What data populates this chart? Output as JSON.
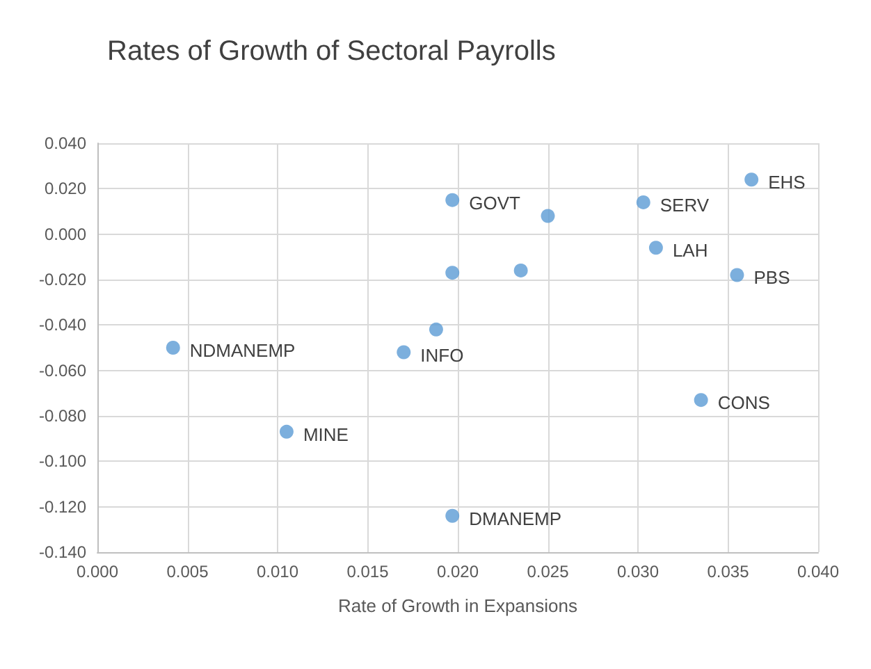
{
  "chart_data": {
    "type": "scatter",
    "title": "Rates of Growth of Sectoral Payrolls",
    "xlabel": "Rate of Growth in Expansions",
    "x": [
      0.0042,
      0.0105,
      0.017,
      0.0188,
      0.0197,
      0.0197,
      0.0197,
      0.0235,
      0.025,
      0.0303,
      0.031,
      0.0335,
      0.0355,
      0.0363
    ],
    "values": [
      -0.05,
      -0.087,
      -0.052,
      -0.042,
      -0.124,
      0.015,
      -0.017,
      -0.016,
      0.008,
      0.014,
      -0.006,
      -0.073,
      -0.018,
      0.024
    ],
    "color": "#5b9bd5",
    "marker": "circle",
    "grid": true,
    "xlim": [
      0,
      0.04
    ],
    "xticks": [
      {
        "value": 0,
        "label": "0.000"
      },
      {
        "value": 0.005,
        "label": "0.005"
      },
      {
        "value": 0.01,
        "label": "0.010"
      },
      {
        "value": 0.015,
        "label": "0.015"
      },
      {
        "value": 0.02,
        "label": "0.020"
      },
      {
        "value": 0.025,
        "label": "0.025"
      },
      {
        "value": 0.03,
        "label": "0.030"
      },
      {
        "value": 0.035,
        "label": "0.035"
      },
      {
        "value": 0.04,
        "label": "0.040"
      }
    ],
    "ylim": [
      -0.14,
      0.04
    ],
    "yticks": [
      {
        "value": -0.14,
        "label": "-0.140"
      },
      {
        "value": -0.12,
        "label": "-0.120"
      },
      {
        "value": -0.1,
        "label": "-0.100"
      },
      {
        "value": -0.08,
        "label": "-0.080"
      },
      {
        "value": -0.06,
        "label": "-0.060"
      },
      {
        "value": -0.04,
        "label": "-0.040"
      },
      {
        "value": -0.02,
        "label": "-0.020"
      },
      {
        "value": 0,
        "label": "0.000"
      },
      {
        "value": 0.02,
        "label": "0.020"
      },
      {
        "value": 0.04,
        "label": "0.040"
      }
    ],
    "annotations": [
      {
        "text": "NDMANEMP",
        "x": 0.0042,
        "y": -0.05
      },
      {
        "text": "MINE",
        "x": 0.0105,
        "y": -0.087
      },
      {
        "text": "INFO",
        "x": 0.017,
        "y": -0.052
      },
      {
        "text": "DMANEMP",
        "x": 0.0197,
        "y": -0.124
      },
      {
        "text": "GOVT",
        "x": 0.0197,
        "y": 0.015
      },
      {
        "text": "SERV",
        "x": 0.0303,
        "y": 0.014
      },
      {
        "text": "LAH",
        "x": 0.031,
        "y": -0.006
      },
      {
        "text": "CONS",
        "x": 0.0335,
        "y": -0.073
      },
      {
        "text": "PBS",
        "x": 0.0355,
        "y": -0.018
      },
      {
        "text": "EHS",
        "x": 0.0363,
        "y": 0.024
      }
    ]
  }
}
